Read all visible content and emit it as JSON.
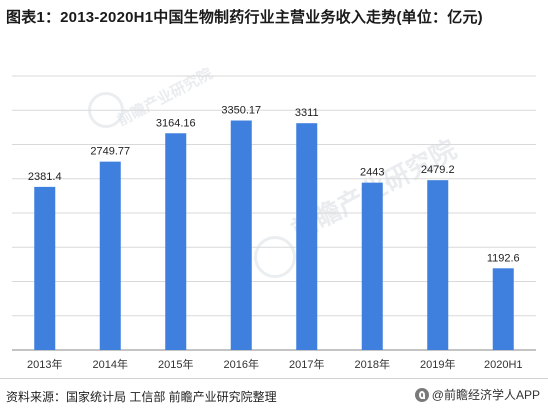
{
  "watermark": {
    "text": "前瞻产业研究院"
  },
  "footer": {
    "source": "资料来源：国家统计局 工信部 前瞻产业研究院整理",
    "brand": "@前瞻经济学人APP"
  },
  "colors": {
    "bar": "#3f7fde",
    "grid": "#d9d9d9",
    "axis": "#888888"
  },
  "chart_data": {
    "type": "bar",
    "title": "图表1：2013-2020H1中国生物制药行业主营业务收入走势(单位：亿元)",
    "categories": [
      "2013年",
      "2014年",
      "2015年",
      "2016年",
      "2017年",
      "2018年",
      "2019年",
      "2020H1"
    ],
    "values": [
      2381.4,
      2749.77,
      3164.16,
      3350.17,
      3311,
      2443,
      2479.2,
      1192.6
    ],
    "labels": [
      "2381.4",
      "2749.77",
      "3164.16",
      "3350.17",
      "3311",
      "2443",
      "2479.2",
      "1192.6"
    ],
    "ylim": [
      0,
      4000
    ],
    "grid": true,
    "xlabel": "",
    "ylabel": ""
  }
}
